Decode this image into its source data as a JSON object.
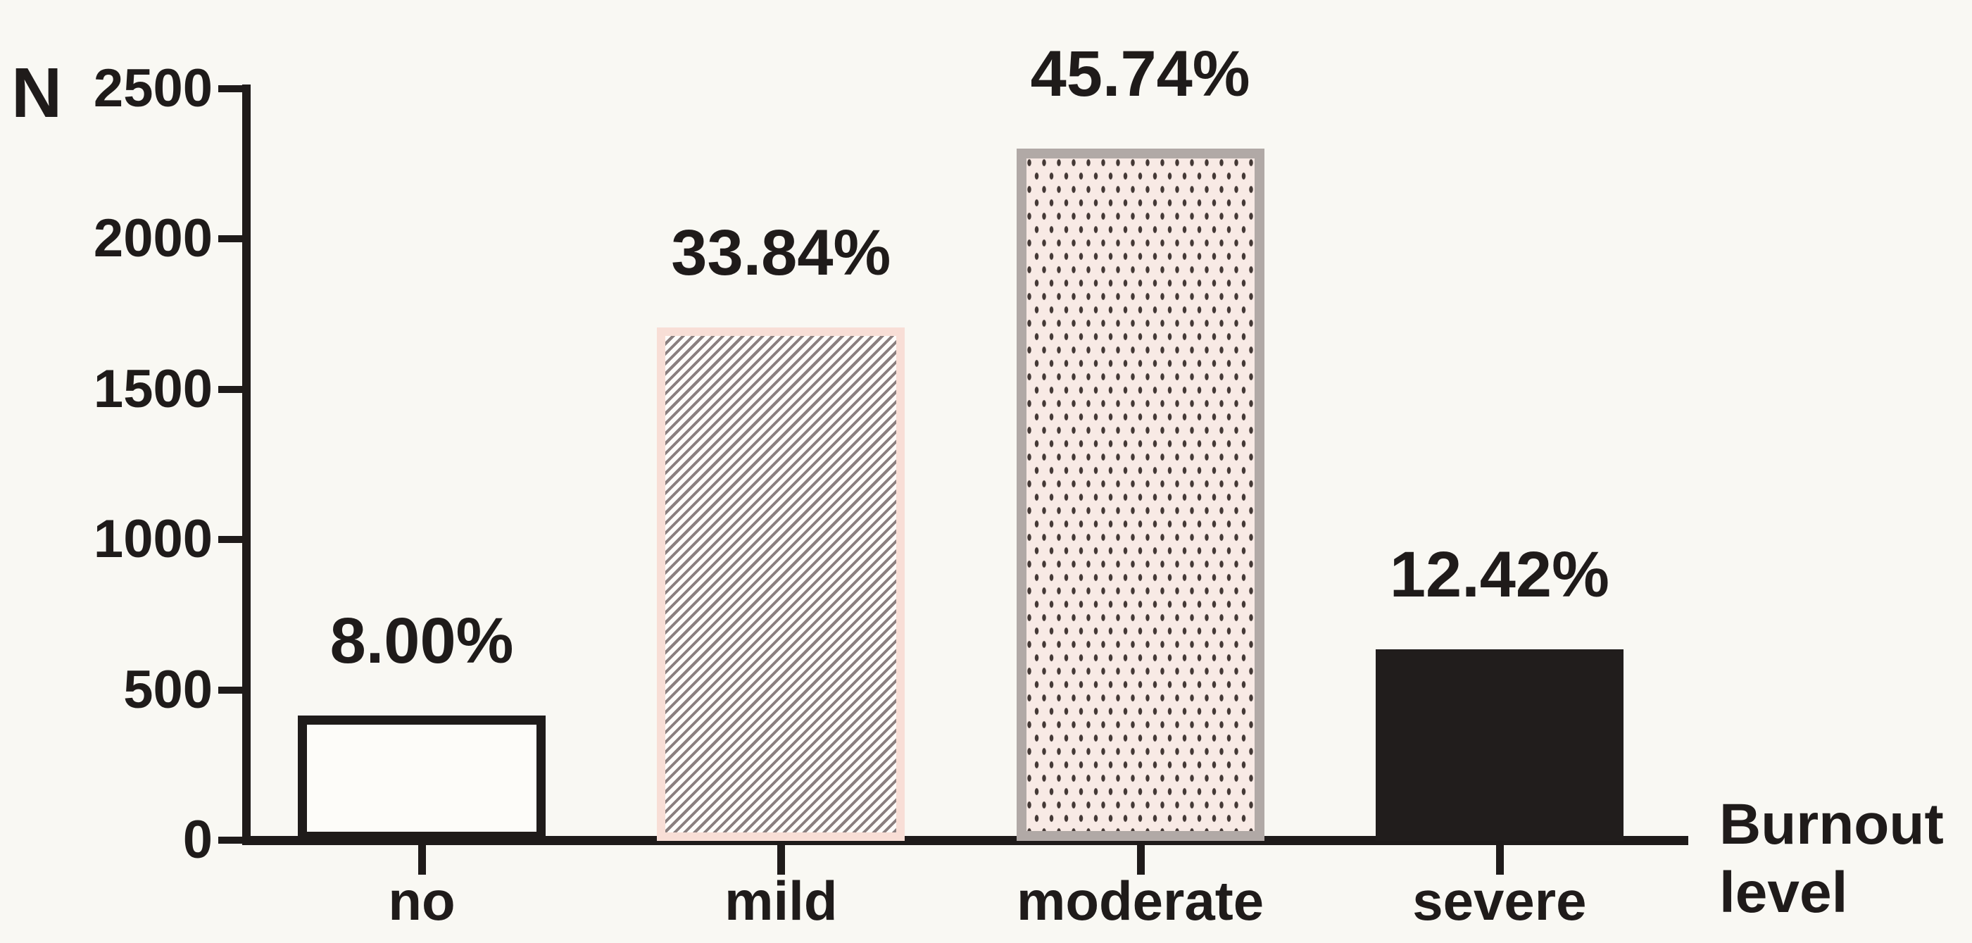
{
  "figure": {
    "background_color": "#f9f8f3",
    "axis_color": "#1f1b1a",
    "text_color": "#1f1b1a",
    "y_axis_title": "N",
    "x_axis_title_line1": "Burnout",
    "x_axis_title_line2": "level"
  },
  "chart_data": {
    "type": "bar",
    "title": "",
    "xlabel": "Burnout level",
    "ylabel": "N",
    "categories": [
      "no",
      "mild",
      "moderate",
      "severe"
    ],
    "values": [
      402,
      1701,
      2299,
      624
    ],
    "percent_labels": [
      "8.00%",
      "33.84%",
      "45.74%",
      "12.42%"
    ],
    "y_ticks": [
      0,
      500,
      1000,
      1500,
      2000,
      2500
    ],
    "ylim": [
      0,
      2500
    ],
    "grid": false,
    "legend": "none",
    "bar_styles": [
      {
        "name": "open-white",
        "pattern": "none",
        "fill": "#fdfcf9",
        "border": "#1f1b1a",
        "pattern_color": "#1f1b1a"
      },
      {
        "name": "diagonal-hatch",
        "pattern": "diagonal",
        "fill": "#fefcfa",
        "border": "#f8ded6",
        "pattern_color": "#8a7f7f"
      },
      {
        "name": "dotted",
        "pattern": "dots",
        "fill": "#f8eae5",
        "border": "#b1a9a6",
        "pattern_color": "#443936"
      },
      {
        "name": "solid-black",
        "pattern": "solid",
        "fill": "#211d1c",
        "border": "#211d1c",
        "pattern_color": "#211d1c"
      }
    ]
  }
}
